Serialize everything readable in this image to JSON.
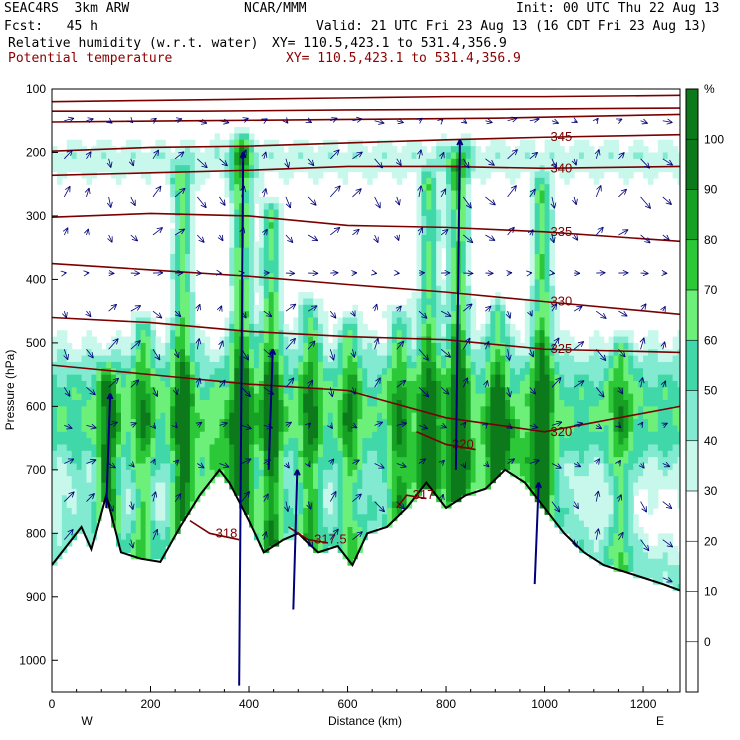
{
  "header": {
    "model": "SEAC4RS  3km ARW",
    "org": "NCAR/MMM",
    "init": "Init: 00 UTC Thu 22 Aug 13",
    "fcst": "Fcst:   45 h",
    "valid": "Valid: 21 UTC Fri 23 Aug 13 (16 CDT Fri 23 Aug 13)",
    "field1": "Relative humidity (w.r.t. water)",
    "xy1": "XY= 110.5,423.1 to 531.4,356.9",
    "field2": "Potential temperature",
    "xy2": "XY= 110.5,423.1 to 531.4,356.9"
  },
  "colors": {
    "theta": "#7a0000",
    "terrain": "#000000",
    "wind": "#00007a",
    "rh_fill": [
      "#ffffff",
      "#ffffff",
      "#ffffff",
      "#ffffff",
      "#c8f8ec",
      "#82ead0",
      "#40d8a8",
      "#6cf07a",
      "#2cc838",
      "#16a024",
      "#0c7a1a"
    ]
  },
  "chart_data": {
    "type": "heatmap",
    "title": "Relative humidity (w.r.t. water)",
    "xlabel": "Distance (km)",
    "ylabel": "Pressure (hPa)",
    "x_range": [
      0,
      1275
    ],
    "y_range": [
      1050,
      100
    ],
    "x_ticks": [
      0,
      200,
      400,
      600,
      800,
      1000,
      1200
    ],
    "y_ticks": [
      100,
      200,
      300,
      400,
      500,
      600,
      700,
      800,
      900,
      1000
    ],
    "x_end_labels": {
      "left": "W",
      "right": "E"
    },
    "colorbar": {
      "unit": "%",
      "levels": [
        -10,
        0,
        10,
        20,
        30,
        40,
        50,
        60,
        70,
        80,
        90,
        100,
        110
      ],
      "labels": [
        "0",
        "10",
        "20",
        "30",
        "40",
        "50",
        "60",
        "70",
        "80",
        "90",
        "100"
      ]
    },
    "theta_contours": [
      {
        "label": "345",
        "points": [
          [
            0,
            198
          ],
          [
            200,
            192
          ],
          [
            400,
            190
          ],
          [
            600,
            185
          ],
          [
            800,
            180
          ],
          [
            1000,
            176
          ],
          [
            1275,
            172
          ]
        ]
      },
      {
        "label": "340",
        "points": [
          [
            0,
            236
          ],
          [
            200,
            232
          ],
          [
            400,
            228
          ],
          [
            600,
            222
          ],
          [
            800,
            222
          ],
          [
            1000,
            225
          ],
          [
            1275,
            222
          ]
        ]
      },
      {
        "label": "335",
        "points": [
          [
            0,
            302
          ],
          [
            200,
            296
          ],
          [
            400,
            300
          ],
          [
            600,
            315
          ],
          [
            800,
            318
          ],
          [
            1000,
            325
          ],
          [
            1275,
            340
          ]
        ]
      },
      {
        "label": "330",
        "points": [
          [
            0,
            375
          ],
          [
            200,
            385
          ],
          [
            400,
            395
          ],
          [
            600,
            408
          ],
          [
            800,
            420
          ],
          [
            1000,
            435
          ],
          [
            1275,
            455
          ]
        ]
      },
      {
        "label": "325",
        "points": [
          [
            0,
            460
          ],
          [
            200,
            468
          ],
          [
            400,
            482
          ],
          [
            600,
            490
          ],
          [
            800,
            495
          ],
          [
            1000,
            510
          ],
          [
            1275,
            515
          ]
        ]
      },
      {
        "label": "320",
        "points": [
          [
            0,
            535
          ],
          [
            200,
            550
          ],
          [
            400,
            565
          ],
          [
            600,
            575
          ],
          [
            800,
            618
          ],
          [
            1000,
            640
          ],
          [
            1275,
            600
          ]
        ]
      },
      {
        "label": "320",
        "points": [
          [
            740,
            640
          ],
          [
            800,
            660
          ],
          [
            860,
            668
          ]
        ]
      },
      {
        "label": "317",
        "points": [
          [
            700,
            760
          ],
          [
            720,
            740
          ],
          [
            760,
            745
          ]
        ]
      },
      {
        "label": "318",
        "points": [
          [
            280,
            780
          ],
          [
            320,
            800
          ],
          [
            380,
            810
          ]
        ]
      },
      {
        "label": "317.5",
        "points": [
          [
            480,
            790
          ],
          [
            520,
            810
          ],
          [
            560,
            815
          ]
        ]
      },
      {
        "label": "",
        "points": [
          [
            0,
            120
          ],
          [
            200,
            118
          ],
          [
            400,
            116
          ],
          [
            600,
            114
          ],
          [
            800,
            112
          ],
          [
            1000,
            112
          ],
          [
            1275,
            110
          ]
        ]
      },
      {
        "label": "",
        "points": [
          [
            0,
            135
          ],
          [
            300,
            135
          ],
          [
            600,
            133
          ],
          [
            900,
            132
          ],
          [
            1275,
            130
          ]
        ]
      },
      {
        "label": "",
        "points": [
          [
            0,
            152
          ],
          [
            300,
            150
          ],
          [
            600,
            148
          ],
          [
            900,
            146
          ],
          [
            1275,
            140
          ]
        ]
      }
    ],
    "terrain": [
      [
        0,
        850
      ],
      [
        30,
        820
      ],
      [
        60,
        790
      ],
      [
        80,
        825
      ],
      [
        110,
        740
      ],
      [
        140,
        830
      ],
      [
        180,
        840
      ],
      [
        220,
        845
      ],
      [
        260,
        790
      ],
      [
        300,
        740
      ],
      [
        340,
        700
      ],
      [
        360,
        720
      ],
      [
        380,
        750
      ],
      [
        400,
        780
      ],
      [
        430,
        830
      ],
      [
        470,
        810
      ],
      [
        500,
        800
      ],
      [
        540,
        830
      ],
      [
        580,
        820
      ],
      [
        610,
        850
      ],
      [
        640,
        800
      ],
      [
        680,
        790
      ],
      [
        720,
        760
      ],
      [
        760,
        720
      ],
      [
        800,
        760
      ],
      [
        840,
        740
      ],
      [
        880,
        730
      ],
      [
        920,
        700
      ],
      [
        960,
        720
      ],
      [
        1000,
        760
      ],
      [
        1040,
        800
      ],
      [
        1080,
        830
      ],
      [
        1120,
        850
      ],
      [
        1160,
        860
      ],
      [
        1200,
        870
      ],
      [
        1240,
        880
      ],
      [
        1275,
        890
      ]
    ],
    "moist_columns": [
      {
        "x": 110,
        "top": 560,
        "intensity": 0.7
      },
      {
        "x": 180,
        "top": 480,
        "intensity": 0.6
      },
      {
        "x": 260,
        "top": 250,
        "intensity": 0.85
      },
      {
        "x": 380,
        "top": 200,
        "intensity": 1.0
      },
      {
        "x": 440,
        "top": 300,
        "intensity": 0.9
      },
      {
        "x": 520,
        "top": 450,
        "intensity": 0.7
      },
      {
        "x": 600,
        "top": 480,
        "intensity": 0.6
      },
      {
        "x": 700,
        "top": 460,
        "intensity": 0.6
      },
      {
        "x": 760,
        "top": 260,
        "intensity": 0.85
      },
      {
        "x": 820,
        "top": 220,
        "intensity": 1.0
      },
      {
        "x": 900,
        "top": 460,
        "intensity": 0.7
      },
      {
        "x": 990,
        "top": 270,
        "intensity": 0.95
      },
      {
        "x": 1150,
        "top": 520,
        "intensity": 0.55
      }
    ],
    "strong_updrafts": [
      {
        "x": 380,
        "from": 1040,
        "to": 200
      },
      {
        "x": 440,
        "from": 700,
        "to": 510
      },
      {
        "x": 490,
        "from": 920,
        "to": 700
      },
      {
        "x": 820,
        "from": 700,
        "to": 180
      },
      {
        "x": 110,
        "from": 760,
        "to": 580
      },
      {
        "x": 980,
        "from": 880,
        "to": 720
      }
    ]
  }
}
